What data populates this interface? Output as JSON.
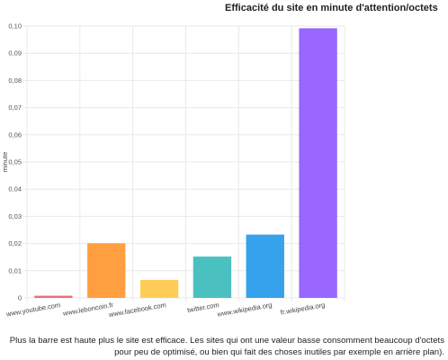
{
  "chart_data": {
    "type": "bar",
    "title": "Efficacité du site en minute d'attention/octets",
    "xlabel": "",
    "ylabel": "minute",
    "ylim": [
      0,
      0.1
    ],
    "yticks": [
      "0",
      "0,01",
      "0,02",
      "0,03",
      "0,04",
      "0,05",
      "0,06",
      "0,07",
      "0,08",
      "0,09",
      "0,10"
    ],
    "categories": [
      "www.youtube.com",
      "www.leboncoin.fr",
      "www.facebook.com",
      "twitter.com",
      "www.wikipedia.org",
      "fr.wikipedia.org"
    ],
    "values": [
      0.0008,
      0.0201,
      0.0066,
      0.0152,
      0.0233,
      0.0992
    ],
    "colors": [
      "#f26b7a",
      "#ff9f40",
      "#ffcd56",
      "#4bc0c0",
      "#36a2eb",
      "#9966ff"
    ],
    "grid": true
  },
  "caption": "Plus la barre est haute plus le site est efficace. Les sites qui ont une valeur basse consomment beaucoup d'octets pour peu de optimisé, ou bien qui fait des choses inutiles par exemple en arrière plan)."
}
